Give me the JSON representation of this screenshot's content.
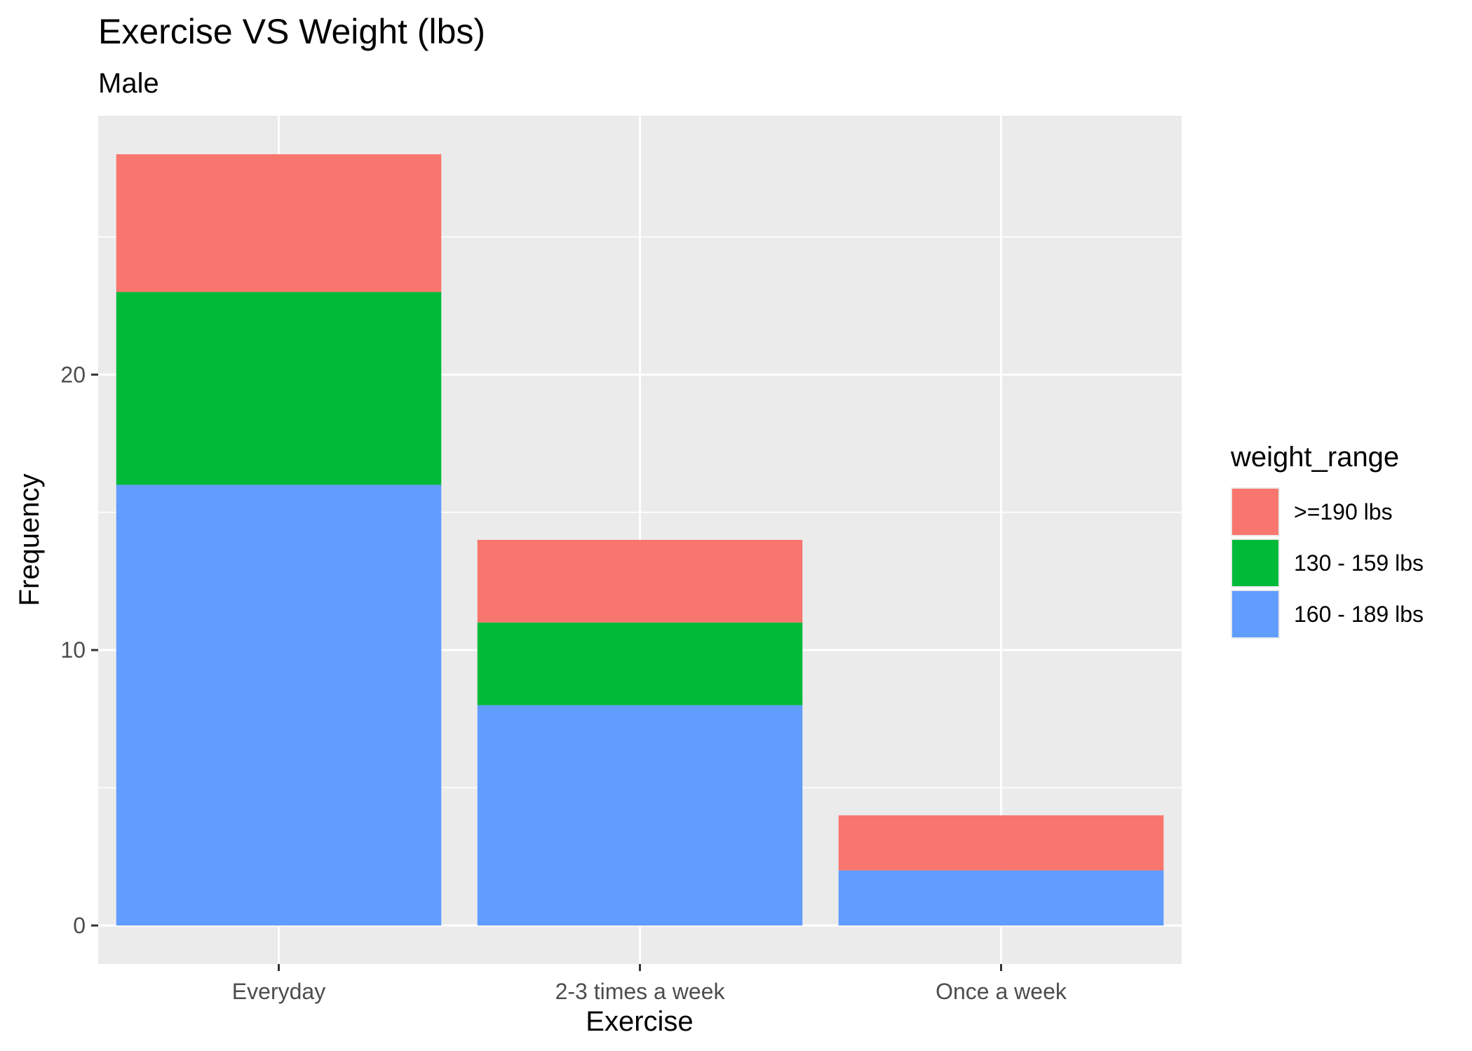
{
  "chart_data": {
    "type": "bar",
    "stacked": true,
    "title": "Exercise VS Weight (lbs)",
    "subtitle": "Male",
    "xlabel": "Exercise",
    "ylabel": "Frequency",
    "categories": [
      "Everyday",
      "2-3 times a week",
      "Once a week"
    ],
    "ylim": [
      -1.4,
      29.4
    ],
    "yticks": [
      0,
      10,
      20
    ],
    "grid": true,
    "legend_position": "right",
    "legend_title": "weight_range",
    "series": [
      {
        "name": "160 - 189 lbs",
        "color": "#619CFF",
        "values": [
          16,
          8,
          2
        ]
      },
      {
        "name": "130 - 159 lbs",
        "color": "#00BA38",
        "values": [
          7,
          3,
          0
        ]
      },
      {
        "name": ">=190 lbs",
        "color": "#F8766D",
        "values": [
          5,
          3,
          2
        ]
      }
    ],
    "legend_order": [
      ">=190 lbs",
      "130 - 159 lbs",
      "160 - 189 lbs"
    ],
    "panel_background": "#EBEBEB",
    "gridline_color": "#FFFFFF"
  }
}
